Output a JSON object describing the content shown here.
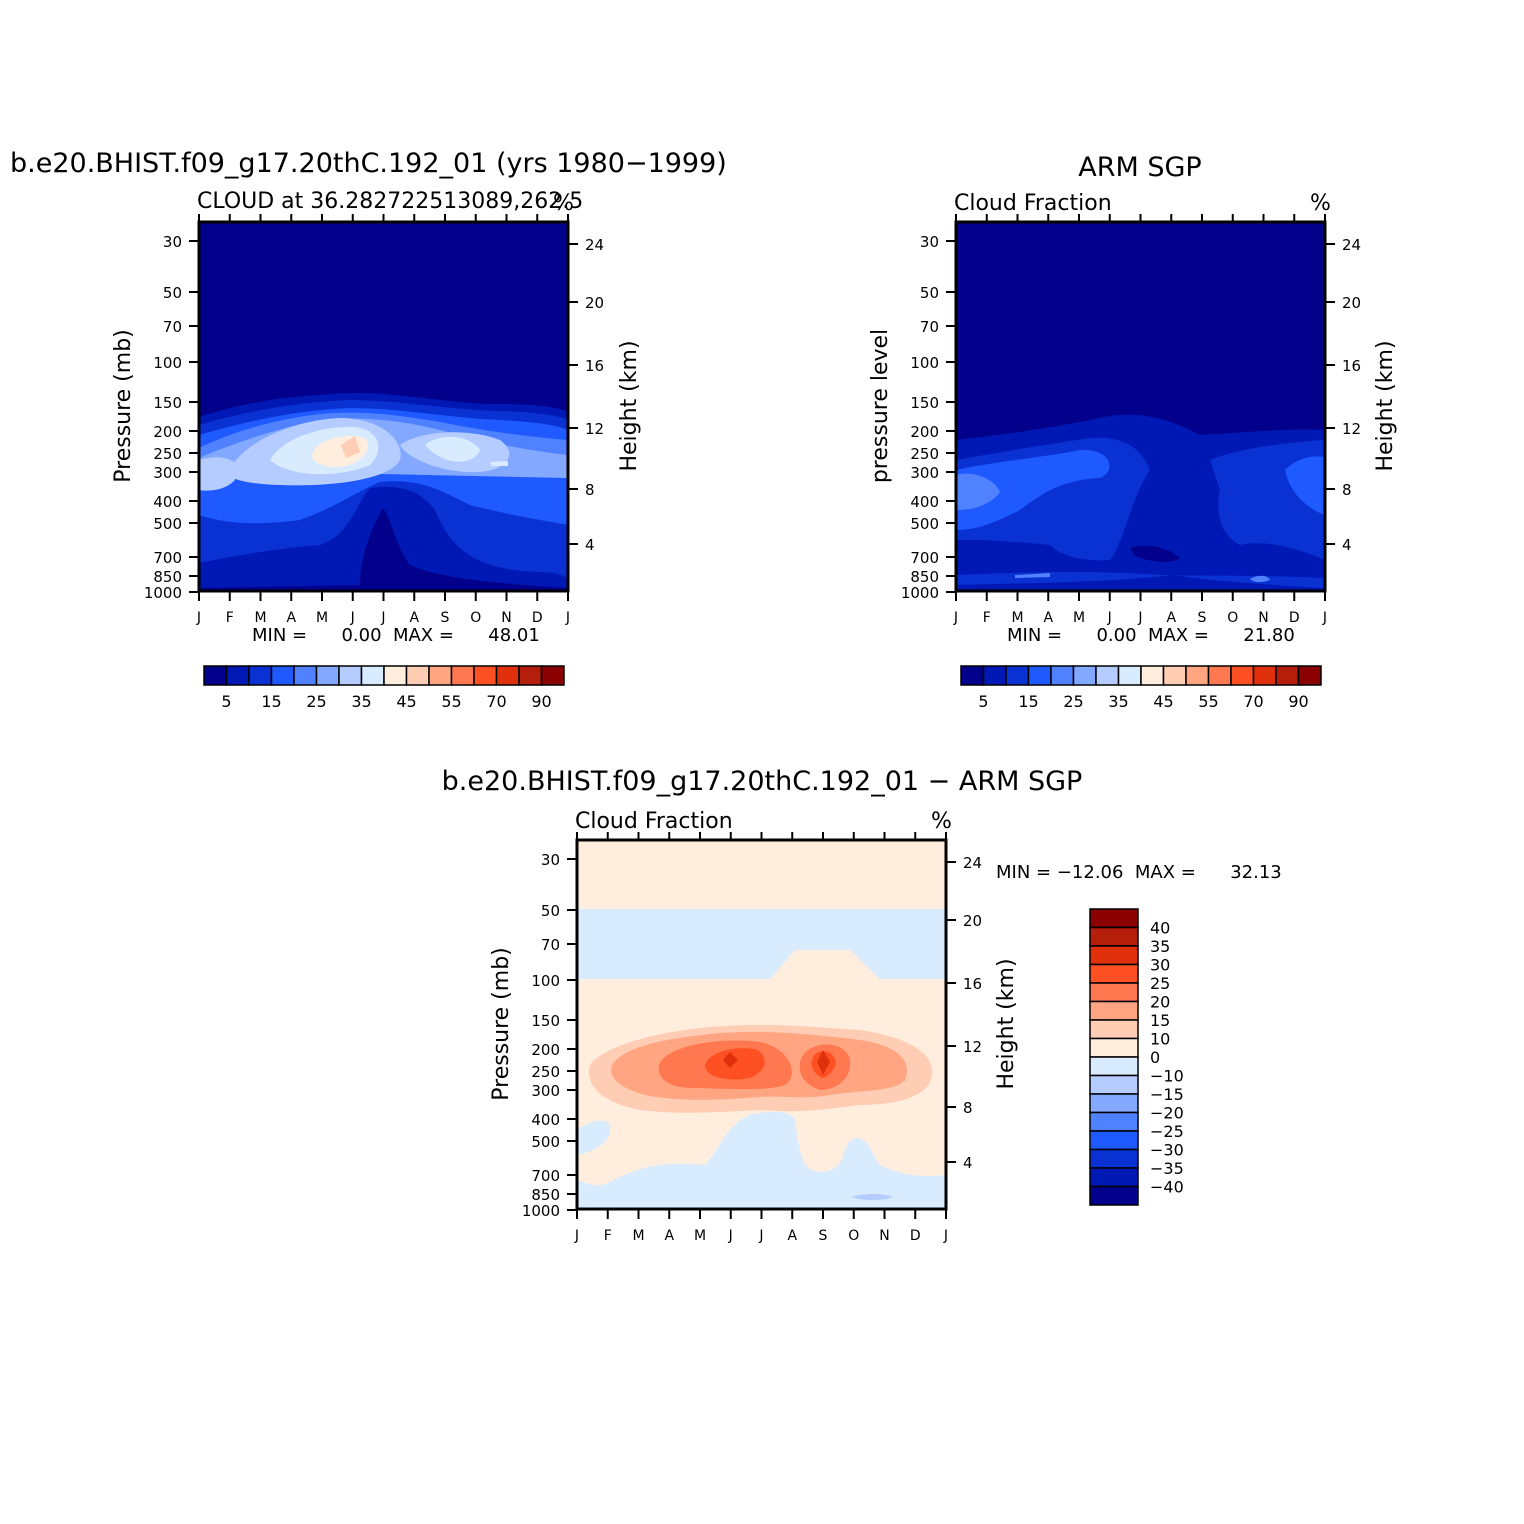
{
  "palettes": {
    "abs": [
      "#03008c",
      "#0019b4",
      "#0a32d2",
      "#1e5aff",
      "#5082ff",
      "#82a8ff",
      "#b4ccff",
      "#d8ebff",
      "#ffeedd",
      "#ffccb4",
      "#ffa582",
      "#ff7850",
      "#ff5023",
      "#e0300c",
      "#b41e0a",
      "#8b0000"
    ],
    "diff": [
      "#03008c",
      "#0019b4",
      "#0a32d2",
      "#1e5aff",
      "#5082ff",
      "#82a8ff",
      "#b4ccff",
      "#d8ebff",
      "#ffeedd",
      "#ffccb4",
      "#ffa582",
      "#ff7850",
      "#ff5023",
      "#e0300c",
      "#b41e0a",
      "#8b0000"
    ]
  },
  "chart_data": [
    {
      "id": "model",
      "type": "heatmap",
      "title": "b.e20.BHIST.f09_g17.20thC.192_01 (yrs 1980−1999)",
      "subtitle": "CLOUD at 36.282722513089,262.5",
      "units": "%",
      "ylabel": "Pressure (mb)",
      "y2label": "Height (km)",
      "x_ticks": [
        "J",
        "F",
        "M",
        "A",
        "M",
        "J",
        "J",
        "A",
        "S",
        "O",
        "N",
        "D",
        "J"
      ],
      "y_ticks": [
        "30",
        "50",
        "70",
        "100",
        "150",
        "200",
        "250",
        "300",
        "400",
        "500",
        "700",
        "850",
        "1000"
      ],
      "y_ticks_values": [
        30,
        50,
        70,
        100,
        150,
        200,
        250,
        300,
        400,
        500,
        700,
        850,
        1000
      ],
      "y2_ticks": [
        "24",
        "20",
        "16",
        "12",
        "8",
        "4"
      ],
      "y2_ticks_values": [
        24,
        20,
        16,
        12,
        8,
        4
      ],
      "min_max_text": "MIN =      0.00  MAX =      48.01",
      "colorbar_labels": [
        "5",
        "15",
        "25",
        "35",
        "45",
        "55",
        "70",
        "90"
      ],
      "levels": [
        2.5,
        5,
        10,
        15,
        20,
        25,
        30,
        35,
        40,
        45,
        50,
        55,
        60,
        70,
        80,
        90
      ],
      "min": 0.0,
      "max": 48.01,
      "grid": false
    },
    {
      "id": "obs",
      "type": "heatmap",
      "title": "ARM SGP",
      "subtitle": "Cloud Fraction",
      "units": "%",
      "ylabel": "pressure level",
      "y2label": "Height (km)",
      "x_ticks": [
        "J",
        "F",
        "M",
        "A",
        "M",
        "J",
        "J",
        "A",
        "S",
        "O",
        "N",
        "D",
        "J"
      ],
      "y_ticks": [
        "30",
        "50",
        "70",
        "100",
        "150",
        "200",
        "250",
        "300",
        "400",
        "500",
        "700",
        "850",
        "1000"
      ],
      "y_ticks_values": [
        30,
        50,
        70,
        100,
        150,
        200,
        250,
        300,
        400,
        500,
        700,
        850,
        1000
      ],
      "y2_ticks": [
        "24",
        "20",
        "16",
        "12",
        "8",
        "4"
      ],
      "y2_ticks_values": [
        24,
        20,
        16,
        12,
        8,
        4
      ],
      "min_max_text": "MIN =      0.00  MAX =      21.80",
      "colorbar_labels": [
        "5",
        "15",
        "25",
        "35",
        "45",
        "55",
        "70",
        "90"
      ],
      "levels": [
        2.5,
        5,
        10,
        15,
        20,
        25,
        30,
        35,
        40,
        45,
        50,
        55,
        60,
        70,
        80,
        90
      ],
      "min": 0.0,
      "max": 21.8,
      "grid": false
    },
    {
      "id": "diff",
      "type": "heatmap",
      "title": "b.e20.BHIST.f09_g17.20thC.192_01 − ARM SGP",
      "subtitle": "Cloud Fraction",
      "units": "%",
      "ylabel": "Pressure (mb)",
      "y2label": "Height (km)",
      "x_ticks": [
        "J",
        "F",
        "M",
        "A",
        "M",
        "J",
        "J",
        "A",
        "S",
        "O",
        "N",
        "D",
        "J"
      ],
      "y_ticks": [
        "30",
        "50",
        "70",
        "100",
        "150",
        "200",
        "250",
        "300",
        "400",
        "500",
        "700",
        "850",
        "1000"
      ],
      "y_ticks_values": [
        30,
        50,
        70,
        100,
        150,
        200,
        250,
        300,
        400,
        500,
        700,
        850,
        1000
      ],
      "y2_ticks": [
        "24",
        "20",
        "16",
        "12",
        "8",
        "4"
      ],
      "y2_ticks_values": [
        24,
        20,
        16,
        12,
        8,
        4
      ],
      "min_max_text": "MIN = −12.06  MAX =      32.13",
      "colorbar_labels": [
        "40",
        "35",
        "30",
        "25",
        "20",
        "15",
        "10",
        "0",
        "−10",
        "−15",
        "−20",
        "−25",
        "−30",
        "−35",
        "−40"
      ],
      "levels": [
        -40,
        -35,
        -30,
        -25,
        -20,
        -15,
        -10,
        0,
        10,
        15,
        20,
        25,
        30,
        35,
        40
      ],
      "min": -12.06,
      "max": 32.13,
      "grid": false
    }
  ]
}
